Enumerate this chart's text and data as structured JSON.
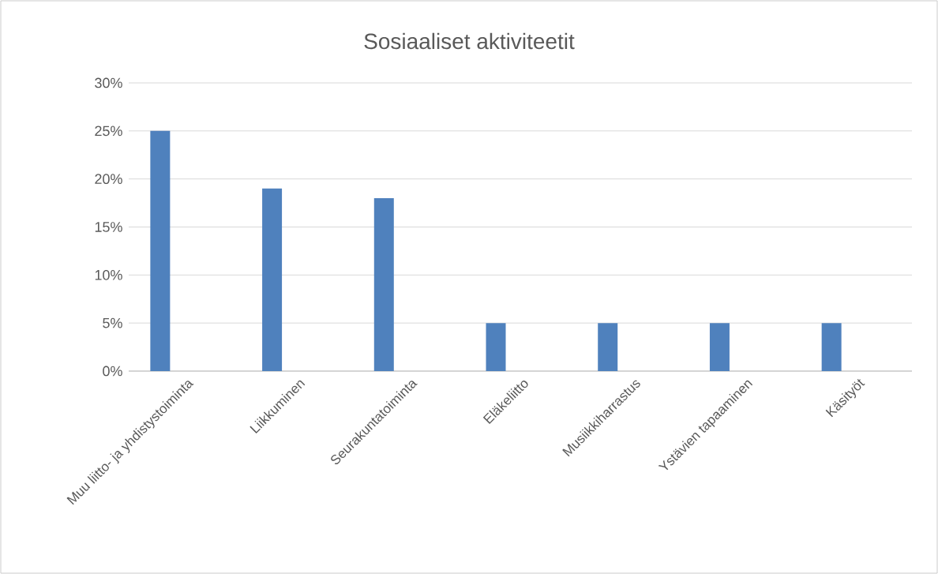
{
  "chart_data": {
    "type": "bar",
    "title": "Sosiaaliset aktiviteetit",
    "categories": [
      "Muu liitto- ja yhdistystoiminta",
      "Liikkuminen",
      "Seurakuntatoiminta",
      "Eläkeliitto",
      "Musiikkiharrastus",
      "Ystävien tapaaminen",
      "Käsityöt"
    ],
    "values": [
      25,
      19,
      18,
      5,
      5,
      5,
      5
    ],
    "color": "#4f81bd",
    "ylim": [
      0,
      30
    ],
    "yticks": [
      {
        "value": 0,
        "label": "0%"
      },
      {
        "value": 5,
        "label": "5%"
      },
      {
        "value": 10,
        "label": "10%"
      },
      {
        "value": 15,
        "label": "15%"
      },
      {
        "value": 20,
        "label": "20%"
      },
      {
        "value": 25,
        "label": "25%"
      },
      {
        "value": 30,
        "label": "30%"
      }
    ],
    "grid": "y"
  }
}
